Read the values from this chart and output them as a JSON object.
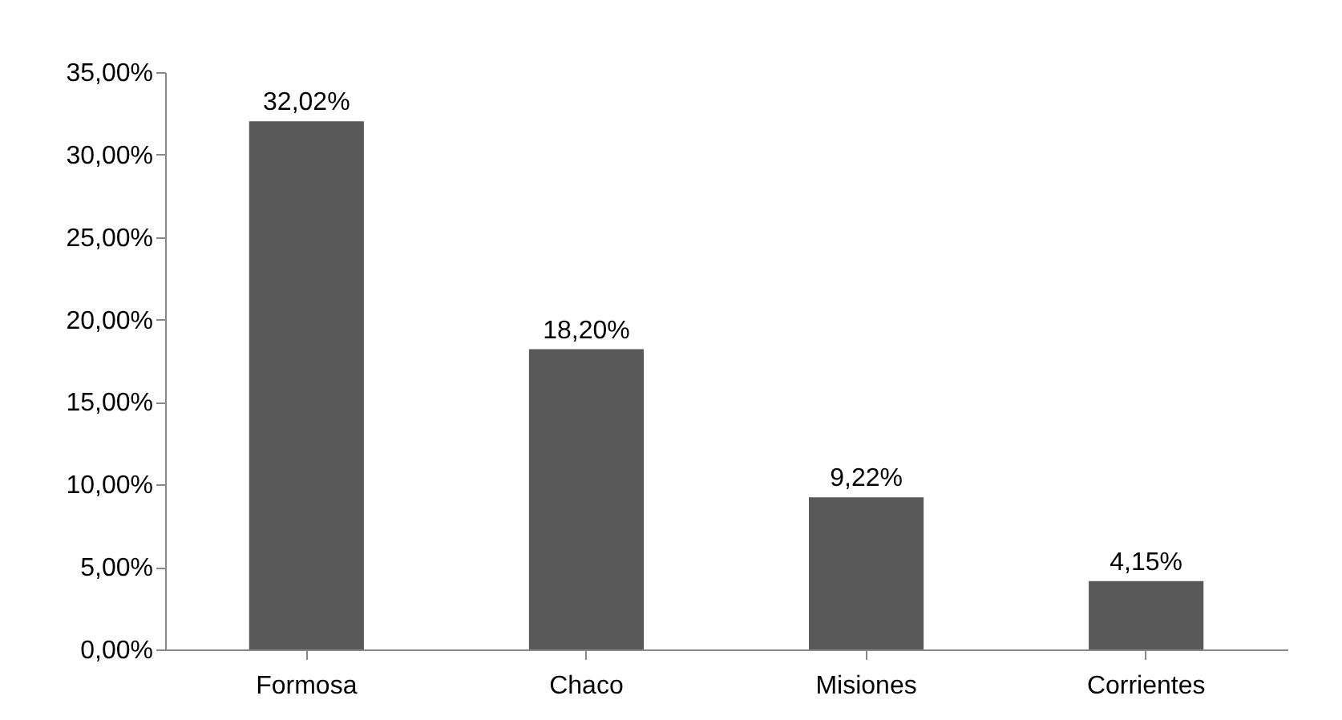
{
  "chart_data": {
    "type": "bar",
    "categories": [
      "Formosa",
      "Chaco",
      "Misiones",
      "Corrientes"
    ],
    "values": [
      32.02,
      18.2,
      9.22,
      4.15
    ],
    "color": "#595959",
    "value_labels": [
      "32,02%",
      "18,20%",
      "9,22%",
      "4,15%"
    ],
    "ylim": [
      0,
      35
    ],
    "yticks": [
      {
        "value": 0,
        "label": "0,00%"
      },
      {
        "value": 5,
        "label": "5,00%"
      },
      {
        "value": 10,
        "label": "10,00%"
      },
      {
        "value": 15,
        "label": "15,00%"
      },
      {
        "value": 20,
        "label": "20,00%"
      },
      {
        "value": 25,
        "label": "25,00%"
      },
      {
        "value": 30,
        "label": "30,00%"
      },
      {
        "value": 35,
        "label": "35,00%"
      }
    ],
    "grid": false
  }
}
